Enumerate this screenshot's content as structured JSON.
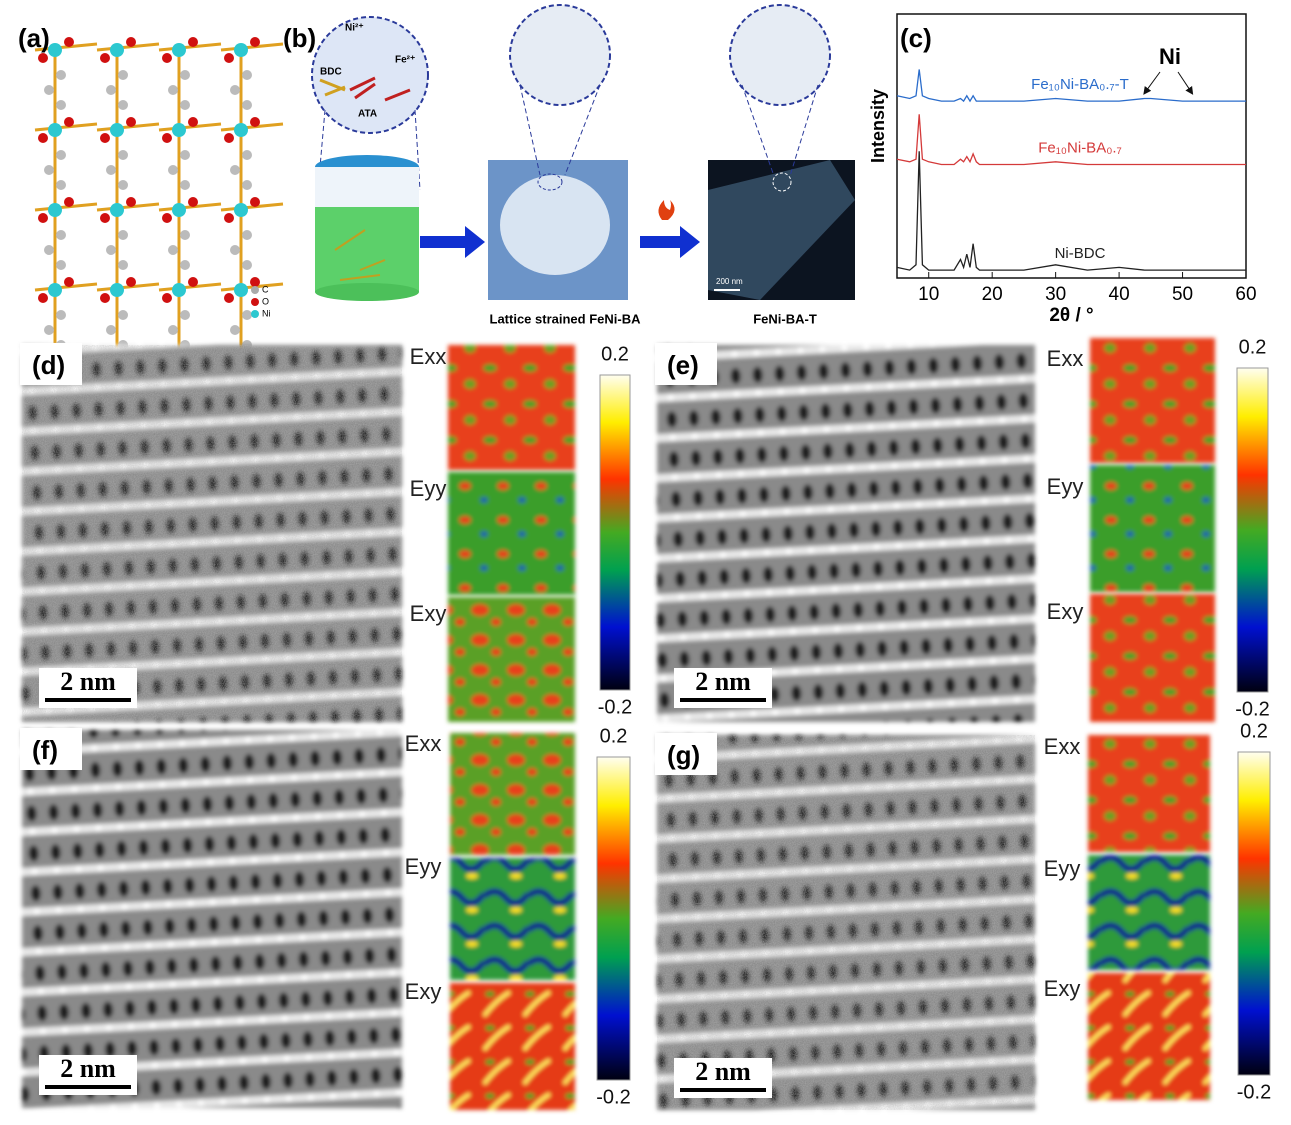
{
  "panel_labels": [
    "(a)",
    "(b)",
    "(c)",
    "(d)",
    "(e)",
    "(f)",
    "(g)"
  ],
  "a": {
    "legend": [
      "C",
      "O",
      "Ni"
    ]
  },
  "b": {
    "reagents": [
      "Ni²⁺",
      "Fe²⁺",
      "BDC",
      "ATA"
    ],
    "captions": [
      "Lattice strained FeNi-BA",
      "FeNi-BA-T"
    ],
    "scale_bar": "200 nm"
  },
  "strain_panels": [
    {
      "components": [
        "Exx",
        "Eyy",
        "Exy"
      ],
      "colorbar": {
        "max": 0.2,
        "min": -0.2
      },
      "scale_bar": "2 nm"
    },
    {
      "components": [
        "Exx",
        "Eyy",
        "Exy"
      ],
      "colorbar": {
        "max": 0.2,
        "min": -0.2
      },
      "scale_bar": "2 nm"
    },
    {
      "components": [
        "Exx",
        "Eyy",
        "Exy"
      ],
      "colorbar": {
        "max": 0.2,
        "min": -0.2
      },
      "scale_bar": "2 nm"
    },
    {
      "components": [
        "Exx",
        "Eyy",
        "Exy"
      ],
      "colorbar": {
        "max": 0.2,
        "min": -0.2
      },
      "scale_bar": "2 nm"
    }
  ],
  "chart_data": {
    "type": "line",
    "xlabel": "2θ / °",
    "ylabel": "Intensity",
    "annotation": "Ni",
    "x": [
      5,
      7,
      8,
      8.5,
      9,
      10,
      12,
      14,
      15,
      15.5,
      16,
      16.5,
      17,
      17.5,
      18,
      20,
      25,
      30,
      35,
      40,
      44,
      45,
      50,
      51.5,
      55,
      60
    ],
    "series": [
      {
        "name": "Fe₁₀Ni-BA₀.₇-T",
        "color": "#2a6ccb",
        "values": [
          69,
          68,
          69,
          79,
          69,
          68,
          67,
          67,
          68,
          67,
          69,
          67,
          69,
          67,
          67,
          67,
          67,
          68,
          67,
          67,
          68,
          68,
          67,
          67,
          67,
          67
        ]
      },
      {
        "name": "Fe₁₀Ni-BA₀.₇",
        "color": "#d43a3a",
        "values": [
          45,
          44,
          45,
          62,
          45,
          44,
          43,
          43,
          45,
          44,
          46,
          44,
          47,
          44,
          43,
          43,
          43,
          44,
          43,
          43,
          43,
          43,
          43,
          43,
          43,
          43
        ]
      },
      {
        "name": "Ni-BDC",
        "color": "#222222",
        "values": [
          4,
          3,
          5,
          48,
          5,
          3,
          3,
          3,
          7,
          4,
          9,
          4,
          13,
          4,
          3,
          3,
          3,
          5,
          3,
          4,
          3,
          3,
          3,
          3,
          3,
          3
        ]
      }
    ],
    "xlim": [
      5,
      60
    ],
    "xticks": [
      10,
      20,
      30,
      40,
      50,
      60
    ],
    "ylim": [
      0,
      100
    ]
  }
}
